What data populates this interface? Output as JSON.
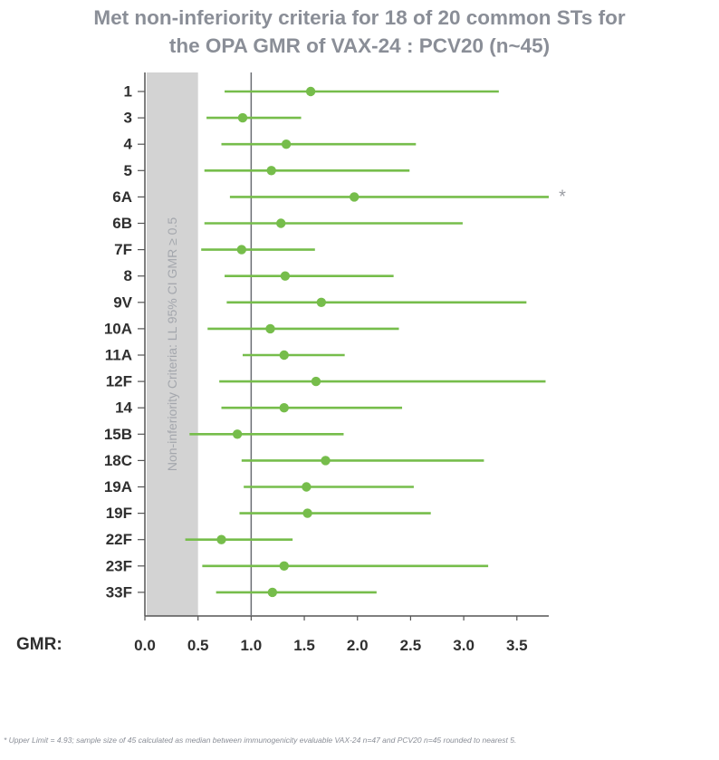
{
  "chart_data": {
    "type": "forest",
    "title_lines": [
      "Met non-inferiority criteria for 18 of 20 common STs for",
      "the OPA GMR of VAX-24 : PCV20 (n~45)"
    ],
    "xlabel": "GMR:",
    "xlim": [
      0.0,
      3.8
    ],
    "xticks": [
      "0.0",
      "0.5",
      "1.0",
      "1.5",
      "2.0",
      "2.5",
      "3.0",
      "3.5"
    ],
    "reference_line": 1.0,
    "noninferiority_region": {
      "from": 0.0,
      "to": 0.5,
      "label": "Non-inferiority Criteria: LL 95% CI GMR ≥ 0.5"
    },
    "series_color": "#76bd4b",
    "region_color": "#d3d3d3",
    "rows": [
      {
        "label": "1",
        "gmr": 1.56,
        "lower": 0.75,
        "upper": 3.33
      },
      {
        "label": "3",
        "gmr": 0.92,
        "lower": 0.58,
        "upper": 1.47
      },
      {
        "label": "4",
        "gmr": 1.33,
        "lower": 0.72,
        "upper": 2.55
      },
      {
        "label": "5",
        "gmr": 1.19,
        "lower": 0.56,
        "upper": 2.49
      },
      {
        "label": "6A",
        "gmr": 1.97,
        "lower": 0.8,
        "upper": 3.8,
        "note": "*"
      },
      {
        "label": "6B",
        "gmr": 1.28,
        "lower": 0.56,
        "upper": 2.99
      },
      {
        "label": "7F",
        "gmr": 0.91,
        "lower": 0.53,
        "upper": 1.6
      },
      {
        "label": "8",
        "gmr": 1.32,
        "lower": 0.75,
        "upper": 2.34
      },
      {
        "label": "9V",
        "gmr": 1.66,
        "lower": 0.77,
        "upper": 3.59
      },
      {
        "label": "10A",
        "gmr": 1.18,
        "lower": 0.59,
        "upper": 2.39
      },
      {
        "label": "11A",
        "gmr": 1.31,
        "lower": 0.92,
        "upper": 1.88
      },
      {
        "label": "12F",
        "gmr": 1.61,
        "lower": 0.7,
        "upper": 3.77
      },
      {
        "label": "14",
        "gmr": 1.31,
        "lower": 0.72,
        "upper": 2.42
      },
      {
        "label": "15B",
        "gmr": 0.87,
        "lower": 0.42,
        "upper": 1.87
      },
      {
        "label": "18C",
        "gmr": 1.7,
        "lower": 0.91,
        "upper": 3.19
      },
      {
        "label": "19A",
        "gmr": 1.52,
        "lower": 0.93,
        "upper": 2.53
      },
      {
        "label": "19F",
        "gmr": 1.53,
        "lower": 0.89,
        "upper": 2.69
      },
      {
        "label": "22F",
        "gmr": 0.72,
        "lower": 0.38,
        "upper": 1.39
      },
      {
        "label": "23F",
        "gmr": 1.31,
        "lower": 0.54,
        "upper": 3.23
      },
      {
        "label": "33F",
        "gmr": 1.2,
        "lower": 0.67,
        "upper": 2.18
      }
    ],
    "footnote": "*  Upper Limit = 4.93; sample size of 45 calculated as median between immunogenicity evaluable VAX-24 n=47 and PCV20 n=45 rounded to nearest 5."
  }
}
